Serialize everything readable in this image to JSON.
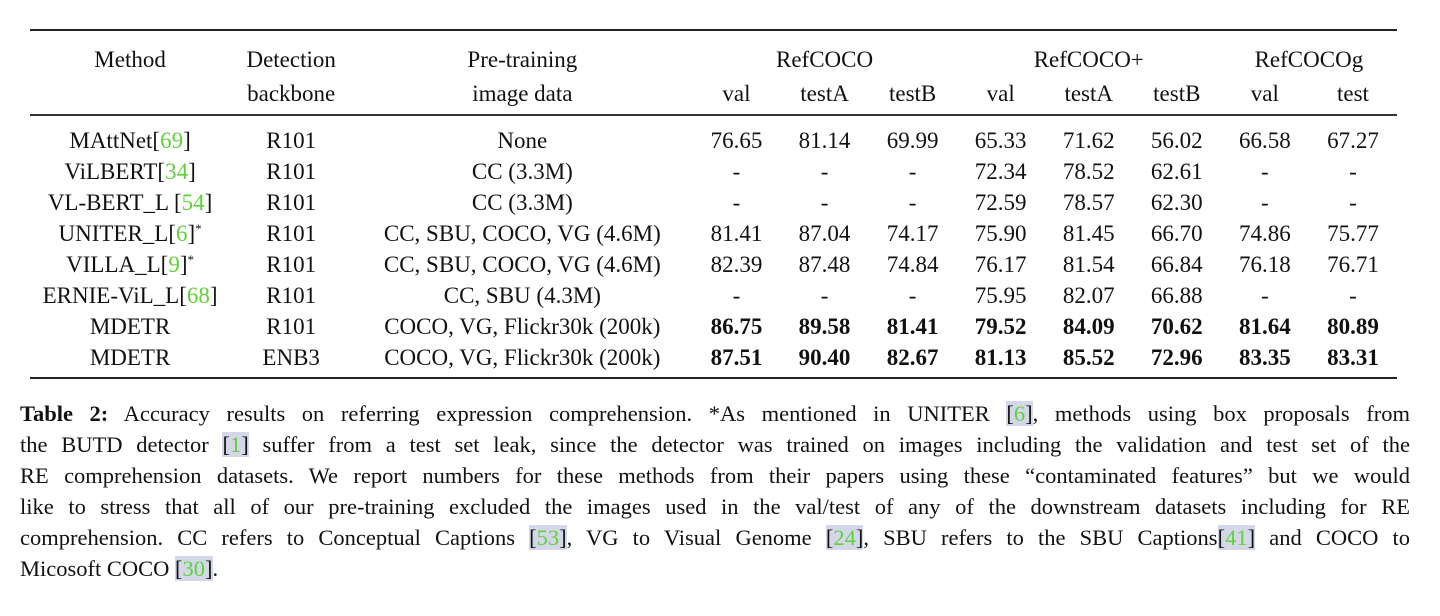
{
  "table": {
    "header": {
      "method": "Method",
      "backbone_line1": "Detection",
      "backbone_line2": "backbone",
      "pretrain_line1": "Pre-training",
      "pretrain_line2": "image data",
      "groups": [
        "RefCOCO",
        "RefCOCO+",
        "RefCOCOg"
      ],
      "subcols": [
        "val",
        "testA",
        "testB",
        "val",
        "testA",
        "testB",
        "val",
        "test"
      ]
    },
    "rows": [
      {
        "name": "MAttNet[",
        "cite": "69",
        "close": "]",
        "star": "",
        "backbone": "R101",
        "pretrain": "None",
        "values": [
          "76.65",
          "81.14",
          "69.99",
          "65.33",
          "71.62",
          "56.02",
          "66.58",
          "67.27"
        ],
        "bold": false
      },
      {
        "name": "ViLBERT[",
        "cite": "34",
        "close": "]",
        "star": "",
        "backbone": "R101",
        "pretrain": "CC (3.3M)",
        "values": [
          "-",
          "-",
          "-",
          "72.34",
          "78.52",
          "62.61",
          "-",
          "-"
        ],
        "bold": false
      },
      {
        "name": "VL-BERT_L [",
        "cite": "54",
        "close": "]",
        "star": "",
        "backbone": "R101",
        "pretrain": "CC (3.3M)",
        "values": [
          "-",
          "-",
          "-",
          "72.59",
          "78.57",
          "62.30",
          "-",
          "-"
        ],
        "bold": false
      },
      {
        "name": "UNITER_L[",
        "cite": "6",
        "close": "]",
        "star": "*",
        "backbone": "R101",
        "pretrain": "CC, SBU, COCO, VG (4.6M)",
        "values": [
          "81.41",
          "87.04",
          "74.17",
          "75.90",
          "81.45",
          "66.70",
          "74.86",
          "75.77"
        ],
        "bold": false
      },
      {
        "name": "VILLA_L[",
        "cite": "9",
        "close": "]",
        "star": "*",
        "backbone": "R101",
        "pretrain": "CC, SBU, COCO, VG (4.6M)",
        "values": [
          "82.39",
          "87.48",
          "74.84",
          "76.17",
          "81.54",
          "66.84",
          "76.18",
          "76.71"
        ],
        "bold": false
      },
      {
        "name": "ERNIE-ViL_L[",
        "cite": "68",
        "close": "]",
        "star": "",
        "backbone": "R101",
        "pretrain": "CC, SBU (4.3M)",
        "values": [
          "-",
          "-",
          "-",
          "75.95",
          "82.07",
          "66.88",
          "-",
          "-"
        ],
        "bold": false
      },
      {
        "name": "MDETR",
        "cite": "",
        "close": "",
        "star": "",
        "backbone": "R101",
        "pretrain": "COCO, VG, Flickr30k (200k)",
        "values": [
          "86.75",
          "89.58",
          "81.41",
          "79.52",
          "84.09",
          "70.62",
          "81.64",
          "80.89"
        ],
        "bold": true
      },
      {
        "name": "MDETR",
        "cite": "",
        "close": "",
        "star": "",
        "backbone": "ENB3",
        "pretrain": "COCO, VG, Flickr30k (200k)",
        "values": [
          "87.51",
          "90.40",
          "82.67",
          "81.13",
          "85.52",
          "72.96",
          "83.35",
          "83.31"
        ],
        "bold": true
      }
    ]
  },
  "caption": {
    "label": "Table 2:",
    "l1a": " Accuracy results on referring expression comprehension.  *As mentioned in UNITER ",
    "c_6": "6",
    "l1b": ", methods using box proposals from",
    "l2a": "the BUTD detector ",
    "c_1": "1",
    "l2b": " suffer from a test set leak, since the detector was trained on images including the validation and test set of the",
    "l3": "RE comprehension datasets.  We report numbers for these methods from their papers using these “contaminated features” but we would",
    "l4": "like to stress that all of our pre-training excluded the images used in the val/test of any of the downstream datasets including for RE",
    "l5a": "comprehension.  CC refers to Conceptual Captions ",
    "c_53": "53",
    "l5b": ", VG to Visual Genome ",
    "c_24": "24",
    "l5c": ", SBU refers to the SBU Captions",
    "c_41": "41",
    "l5d": " and COCO to",
    "l6a": "Micosoft COCO ",
    "c_30": "30",
    "l6b": "."
  },
  "colors": {
    "citation": "#5fd13a",
    "citation_highlight": "#d3d7e8",
    "text": "#111111"
  }
}
